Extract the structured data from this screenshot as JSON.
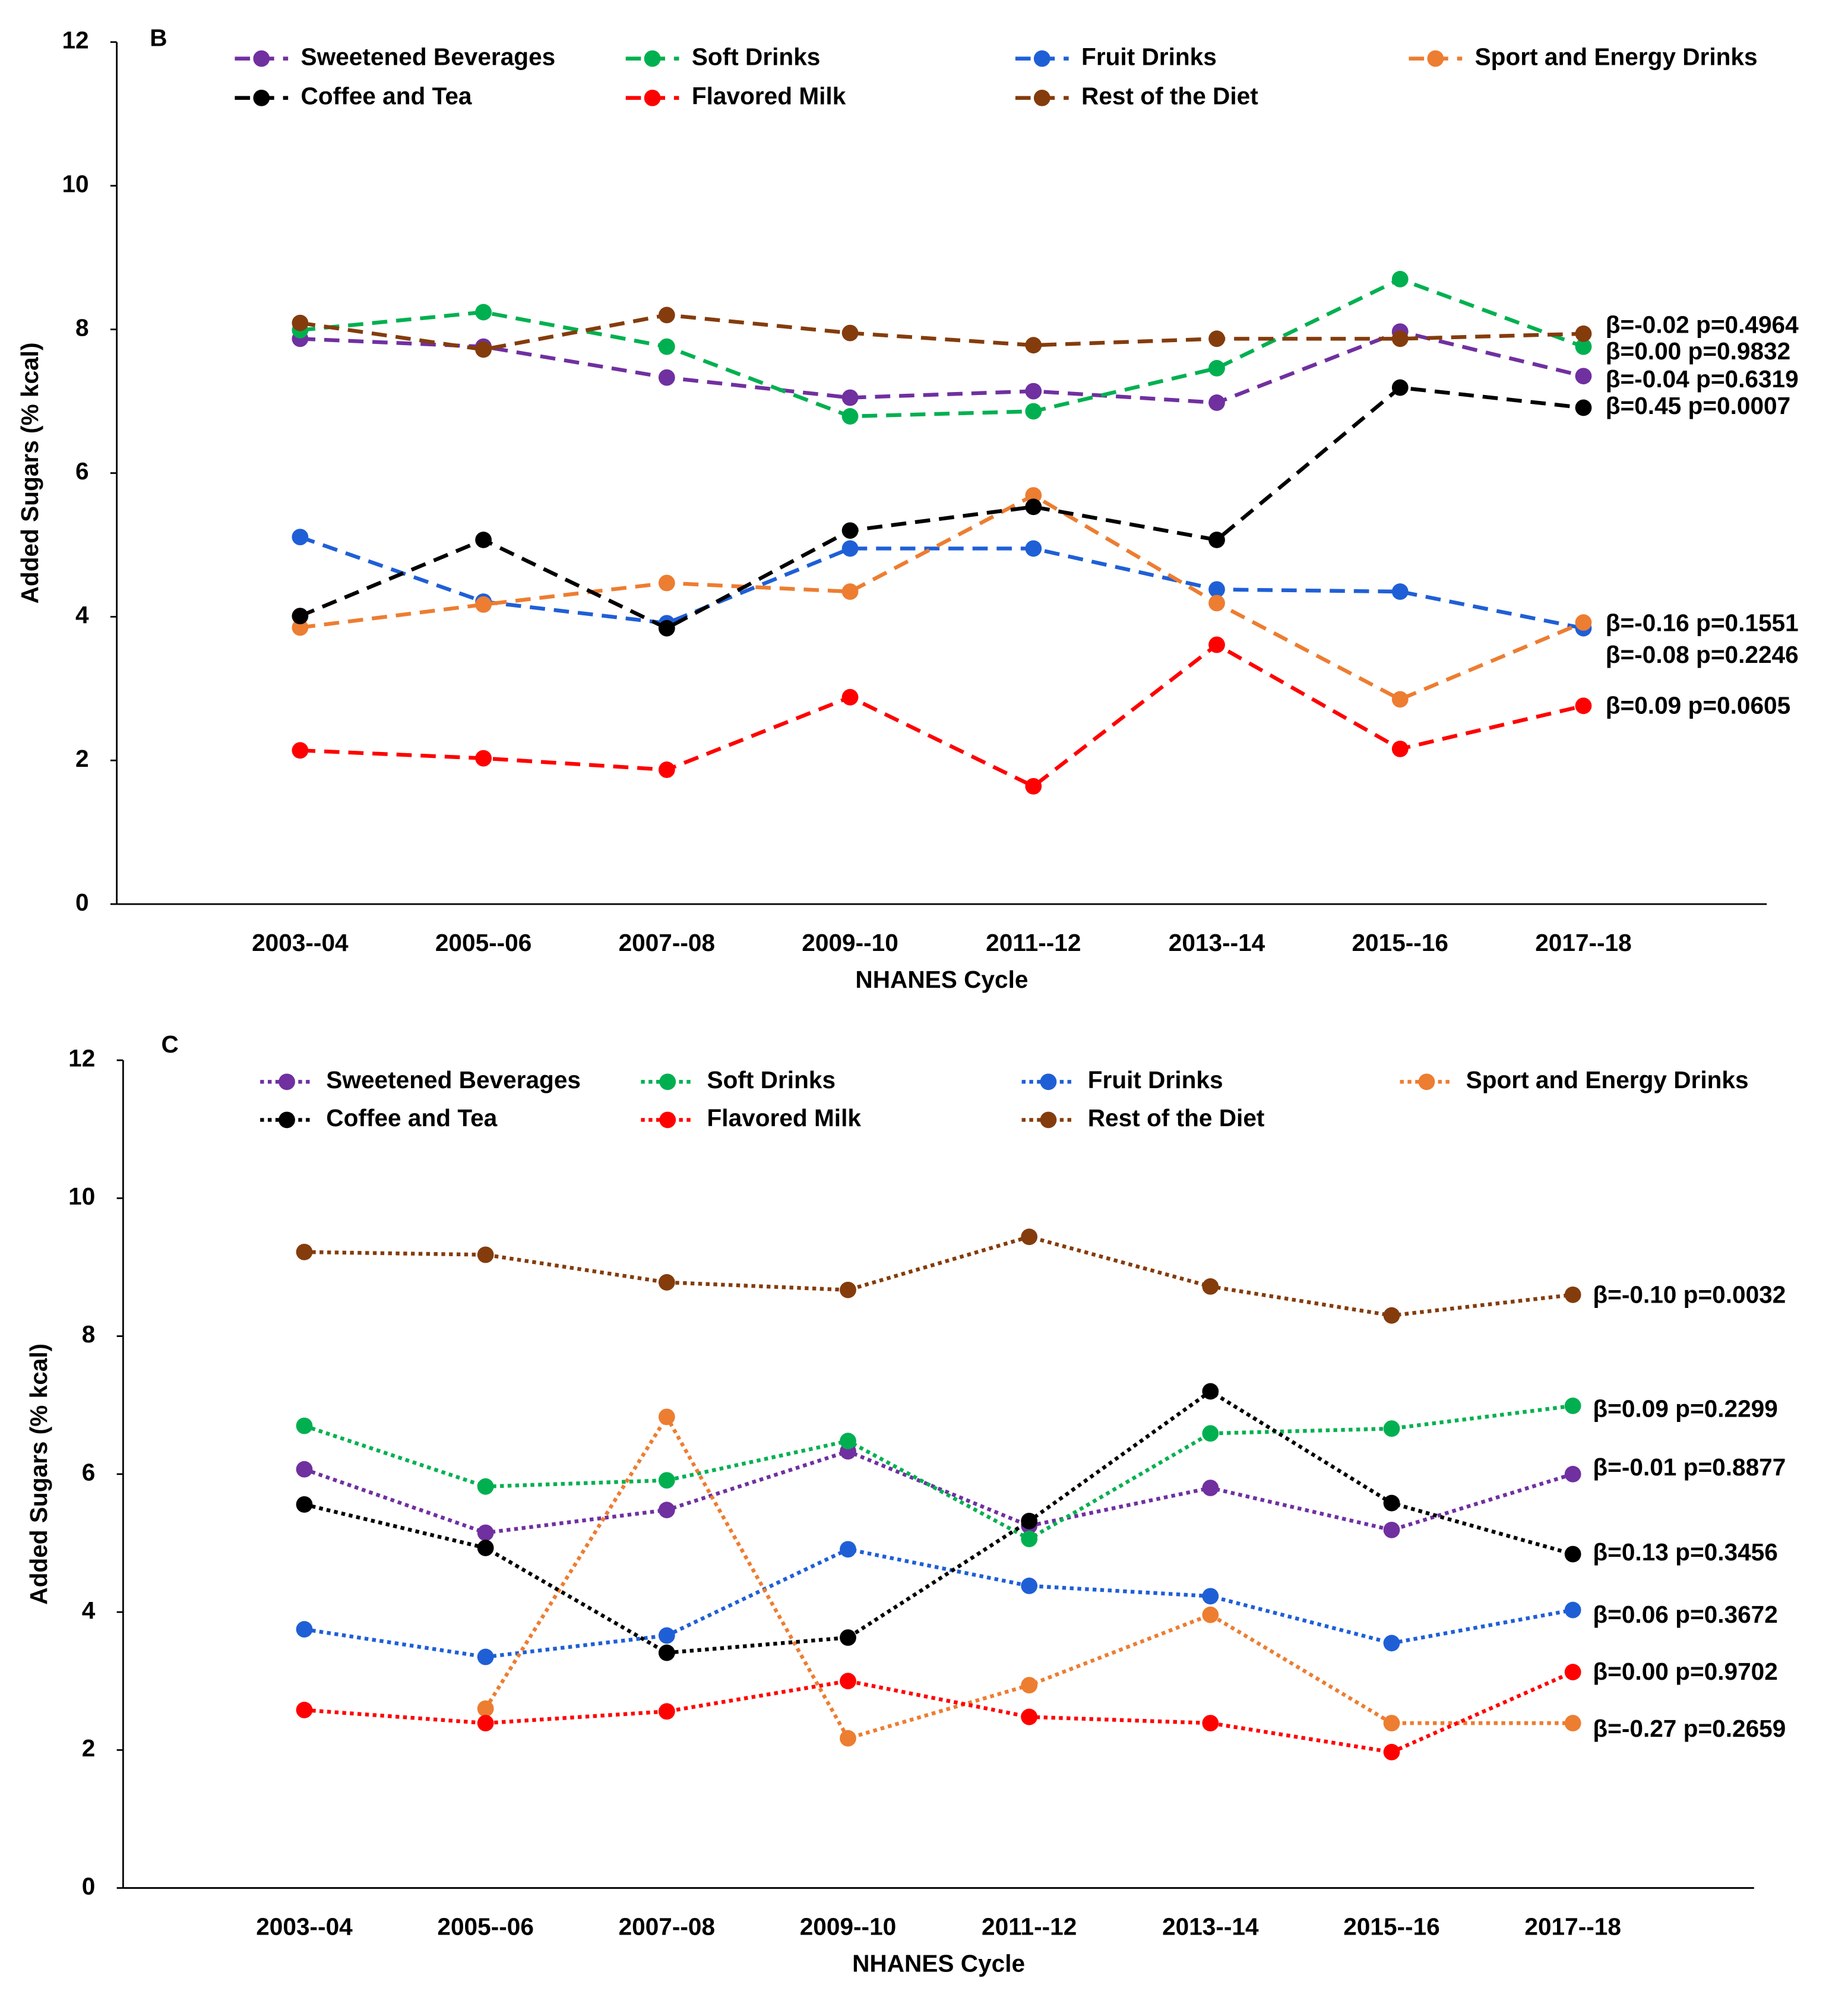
{
  "chart_data": [
    {
      "type": "line",
      "panel_label": "B",
      "line_style": "dashed",
      "x_label": "NHANES Cycle",
      "y_label": "Added Sugars (% kcal)",
      "categories": [
        "2003--04",
        "2005--06",
        "2007--08",
        "2009--10",
        "2011--12",
        "2013--14",
        "2015--16",
        "2017--18"
      ],
      "ylim": [
        0,
        12
      ],
      "yticks": [
        0,
        2,
        4,
        6,
        8,
        10,
        12
      ],
      "series": [
        {
          "name": "Sweetened Beverages",
          "color": "#7030a0",
          "values": [
            7.87,
            7.76,
            7.33,
            7.05,
            7.14,
            6.98,
            7.97,
            7.35
          ]
        },
        {
          "name": "Soft Drinks",
          "color": "#00b050",
          "values": [
            7.99,
            8.24,
            7.76,
            6.79,
            6.86,
            7.46,
            8.7,
            7.76
          ]
        },
        {
          "name": "Fruit Drinks",
          "color": "#1f5fd6",
          "values": [
            5.11,
            4.21,
            3.91,
            4.95,
            4.95,
            4.38,
            4.35,
            3.84
          ]
        },
        {
          "name": "Sport and Energy Drinks",
          "color": "#ed7d31",
          "values": [
            3.85,
            4.17,
            4.47,
            4.35,
            5.69,
            4.19,
            2.85,
            3.92
          ]
        },
        {
          "name": "Coffee and Tea",
          "color": "#000000",
          "values": [
            4.01,
            5.07,
            3.84,
            5.2,
            5.53,
            5.07,
            7.19,
            6.91
          ]
        },
        {
          "name": "Flavored Milk",
          "color": "#ff0000",
          "values": [
            2.14,
            2.03,
            1.87,
            2.88,
            1.64,
            3.61,
            2.16,
            2.76
          ]
        },
        {
          "name": "Rest of the Diet",
          "color": "#843c0c",
          "values": [
            8.09,
            7.72,
            8.2,
            7.95,
            7.78,
            7.87,
            7.87,
            7.94
          ]
        }
      ],
      "annotations": [
        "β=-0.02 p=0.4964",
        "β=0.00 p=0.9832",
        "β=-0.04 p=0.6319",
        "β=0.45 p=0.0007",
        "β=-0.16 p=0.1551",
        "β=-0.08 p=0.2246",
        "β=0.09 p=0.0605"
      ]
    },
    {
      "type": "line",
      "panel_label": "C",
      "line_style": "dotted",
      "x_label": "NHANES Cycle",
      "y_label": "Added Sugars (% kcal)",
      "categories": [
        "2003--04",
        "2005--06",
        "2007--08",
        "2009--10",
        "2011--12",
        "2013--14",
        "2015--16",
        "2017--18"
      ],
      "ylim": [
        0,
        12
      ],
      "yticks": [
        0,
        2,
        4,
        6,
        8,
        10,
        12
      ],
      "series": [
        {
          "name": "Sweetened Beverages",
          "color": "#7030a0",
          "values": [
            6.07,
            5.15,
            5.48,
            6.33,
            5.25,
            5.8,
            5.19,
            6.0
          ]
        },
        {
          "name": "Soft Drinks",
          "color": "#00b050",
          "values": [
            6.7,
            5.82,
            5.91,
            6.48,
            5.06,
            6.59,
            6.66,
            6.99
          ]
        },
        {
          "name": "Fruit Drinks",
          "color": "#1f5fd6",
          "values": [
            3.75,
            3.35,
            3.66,
            4.91,
            4.38,
            4.23,
            3.55,
            4.03
          ]
        },
        {
          "name": "Sport and Energy Drinks",
          "color": "#ed7d31",
          "values": [
            null,
            2.6,
            6.83,
            2.17,
            2.94,
            3.96,
            2.39,
            2.39
          ]
        },
        {
          "name": "Coffee and Tea",
          "color": "#000000",
          "values": [
            5.56,
            4.93,
            3.41,
            3.63,
            5.32,
            7.2,
            5.58,
            4.84
          ]
        },
        {
          "name": "Flavored Milk",
          "color": "#ff0000",
          "values": [
            2.58,
            2.39,
            2.56,
            3.0,
            2.48,
            2.39,
            1.97,
            3.13
          ]
        },
        {
          "name": "Rest of the Diet",
          "color": "#843c0c",
          "values": [
            9.22,
            9.18,
            8.78,
            8.67,
            9.44,
            8.72,
            8.3,
            8.6
          ]
        }
      ],
      "annotations": [
        "β=-0.10 p=0.0032",
        "β=0.09 p=0.2299",
        "β=-0.01 p=0.8877",
        "β=0.13 p=0.3456",
        "β=0.06 p=0.3672",
        "β=0.00 p=0.9702",
        "β=-0.27 p=0.2659"
      ]
    }
  ]
}
